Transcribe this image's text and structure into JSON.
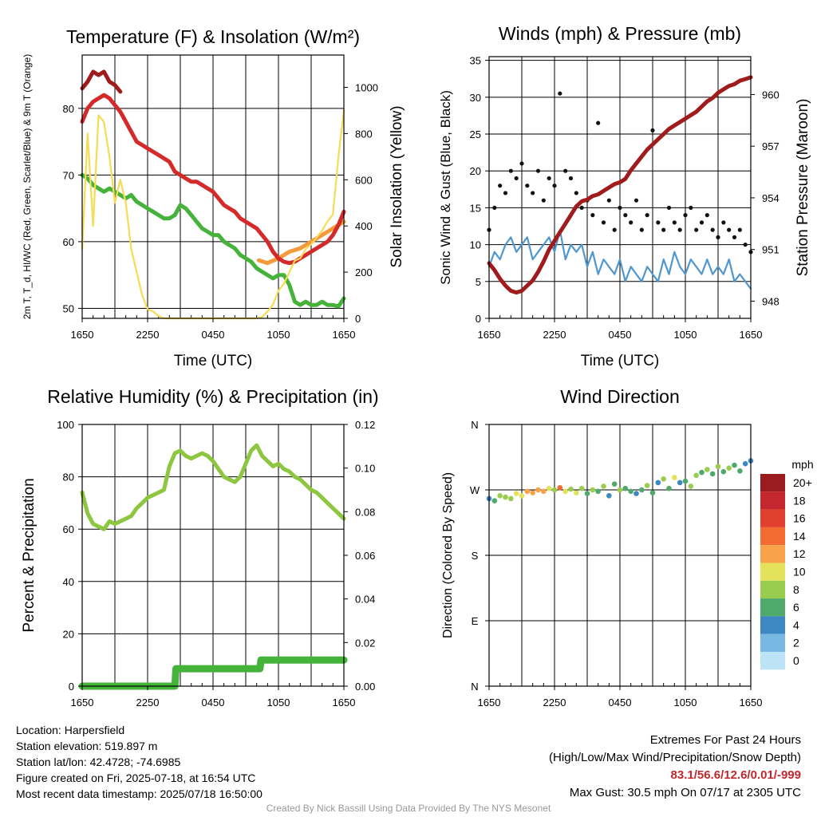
{
  "chart_data": [
    {
      "type": "line",
      "title": "Temperature (F) & Insolation (W/m²)",
      "xlabel": "Time (UTC)",
      "ylabel": "2m T, T_d, HI/WC (Red, Green, Scarlet/Blue) & 9m T (Orange)",
      "y2label": "Solar Insolation (Yellow)",
      "x_ticks": [
        "1650",
        "2250",
        "0450",
        "1050",
        "1650"
      ],
      "ylim": [
        48.5,
        88
      ],
      "y_ticks": [
        50,
        60,
        70,
        80
      ],
      "y2lim": [
        0,
        1140
      ],
      "y2_ticks": [
        0,
        200,
        400,
        600,
        800,
        1000
      ],
      "grid": true,
      "series": [
        {
          "name": "HI/WC",
          "color": "#a01c1c",
          "x": [
            0,
            0.5,
            1,
            1.5,
            2,
            2.5,
            3,
            3.5
          ],
          "values": [
            83,
            84,
            85.5,
            85,
            85.5,
            84,
            83.5,
            82.5
          ]
        },
        {
          "name": "9m T",
          "color": "#f59a3a",
          "x": [
            16.2,
            17,
            18,
            19,
            20,
            21,
            22,
            23,
            24
          ],
          "values": [
            57.2,
            56.8,
            57.5,
            58.5,
            59,
            60,
            61,
            62,
            63
          ]
        },
        {
          "name": "2m T",
          "color": "#d42a2a",
          "x": [
            0,
            0.5,
            1,
            1.5,
            2,
            2.5,
            3,
            3.5,
            4,
            4.5,
            5,
            5.5,
            6,
            6.5,
            7,
            7.5,
            8,
            8.5,
            9,
            9.5,
            10,
            10.5,
            11,
            11.5,
            12,
            12.5,
            13,
            13.5,
            14,
            14.5,
            15,
            15.5,
            16,
            16.5,
            17,
            17.5,
            18,
            18.5,
            19,
            19.5,
            20,
            20.5,
            21,
            21.5,
            22,
            22.5,
            23,
            23.5,
            24
          ],
          "values": [
            78,
            80,
            81,
            81.5,
            82,
            81.5,
            80.5,
            79.5,
            78,
            76.5,
            75,
            74.5,
            74,
            73.5,
            73,
            72.5,
            72,
            70.5,
            70,
            69.5,
            69,
            69,
            68.5,
            68,
            67.5,
            66.5,
            65.5,
            65,
            64.5,
            63.5,
            63,
            62.5,
            62,
            61,
            60,
            58.5,
            57.5,
            57,
            56.8,
            57,
            57.5,
            58,
            58.5,
            59,
            59.5,
            60,
            61,
            62.5,
            64.5
          ]
        },
        {
          "name": "T_d",
          "color": "#45b23a",
          "x": [
            0,
            0.5,
            1,
            1.5,
            2,
            2.5,
            3,
            3.5,
            4,
            4.5,
            5,
            5.5,
            6,
            6.5,
            7,
            7.5,
            8,
            8.5,
            9,
            9.5,
            10,
            10.5,
            11,
            11.5,
            12,
            12.5,
            13,
            13.5,
            14,
            14.5,
            15,
            15.5,
            16,
            16.5,
            17,
            17.5,
            18,
            18.5,
            19,
            19.5,
            20,
            20.5,
            21,
            21.5,
            22,
            22.5,
            23,
            23.5,
            24
          ],
          "values": [
            70,
            69.5,
            68.5,
            68,
            67.5,
            68,
            67.5,
            67,
            66.5,
            67,
            66,
            65.5,
            65,
            64.5,
            64,
            63.5,
            63.5,
            64,
            65.5,
            65,
            64,
            63,
            62,
            61.5,
            61,
            61,
            60,
            59.5,
            59,
            58,
            57.5,
            57,
            56,
            55.5,
            55,
            54.5,
            55,
            55,
            53.5,
            51,
            50.5,
            51,
            50.5,
            50.5,
            51,
            50.5,
            50.5,
            50.3,
            51.5
          ]
        },
        {
          "name": "Solar Insolation",
          "color": "#f6dc55",
          "axis": "right",
          "x": [
            0,
            0.5,
            1,
            1.5,
            2,
            2.5,
            3,
            3.5,
            4,
            4.5,
            5,
            5.5,
            6,
            6.5,
            7,
            7.5,
            8,
            8.5,
            9,
            9.5,
            10,
            11,
            12,
            13,
            14,
            15,
            16,
            16.5,
            17,
            17.5,
            18,
            18.5,
            19,
            19.5,
            20,
            20.5,
            21,
            21.5,
            22,
            22.5,
            23,
            23.5,
            24
          ],
          "values": [
            300,
            800,
            400,
            880,
            850,
            700,
            500,
            600,
            500,
            300,
            200,
            100,
            40,
            30,
            10,
            0,
            0,
            0,
            0,
            0,
            0,
            0,
            0,
            0,
            0,
            0,
            0,
            5,
            30,
            60,
            120,
            150,
            200,
            250,
            260,
            300,
            320,
            350,
            380,
            420,
            450,
            700,
            900
          ]
        }
      ]
    },
    {
      "type": "line",
      "title": "Winds (mph) & Pressure (mb)",
      "xlabel": "Time (UTC)",
      "ylabel": "Sonic Wind & Gust (Blue, Black)",
      "y2label": "Station Pressure (Maroon)",
      "x_ticks": [
        "1650",
        "2250",
        "0450",
        "1050",
        "1650"
      ],
      "ylim": [
        0,
        35.5
      ],
      "y_ticks": [
        0,
        5,
        10,
        15,
        20,
        25,
        30,
        35
      ],
      "y2lim": [
        947,
        962.2
      ],
      "y2_ticks": [
        948,
        951,
        954,
        957,
        960
      ],
      "grid": true,
      "series": [
        {
          "name": "Wind",
          "color": "#4f97cf",
          "x": [
            0,
            0.5,
            1,
            1.5,
            2,
            2.5,
            3,
            3.5,
            4,
            4.5,
            5,
            5.5,
            6,
            6.5,
            7,
            7.5,
            8,
            8.5,
            9,
            9.5,
            10,
            10.5,
            11,
            11.5,
            12,
            12.5,
            13,
            13.5,
            14,
            14.5,
            15,
            15.5,
            16,
            16.5,
            17,
            17.5,
            18,
            18.5,
            19,
            19.5,
            20,
            20.5,
            21,
            21.5,
            22,
            22.5,
            23,
            23.5,
            24
          ],
          "values": [
            7,
            9,
            8,
            10,
            11,
            9,
            10,
            11,
            8,
            9,
            10,
            11,
            9,
            12,
            8,
            10,
            9,
            10,
            7,
            9,
            6,
            8,
            7,
            6,
            8,
            5,
            7,
            6,
            5,
            7,
            6,
            5,
            8,
            6,
            9,
            7,
            6,
            8,
            7,
            6,
            8,
            6,
            7,
            6,
            8,
            5,
            6,
            5,
            4
          ]
        },
        {
          "name": "Gust",
          "color": "#111111",
          "kind": "scatter",
          "x": [
            0,
            0.5,
            1,
            1.5,
            2,
            2.5,
            3,
            3.5,
            4,
            4.5,
            5,
            5.5,
            6,
            6.5,
            7,
            7.5,
            8,
            8.5,
            9,
            9.5,
            10,
            10.5,
            11,
            11.5,
            12,
            12.5,
            13,
            13.5,
            14,
            14.5,
            15,
            15.5,
            16,
            16.5,
            17,
            17.5,
            18,
            18.5,
            19,
            19.5,
            20,
            20.5,
            21,
            21.5,
            22,
            22.5,
            23,
            23.5,
            24
          ],
          "values": [
            12,
            15,
            18,
            17,
            20,
            19,
            21,
            18,
            17,
            20,
            16,
            19,
            18,
            30.5,
            20,
            19,
            17,
            15,
            16,
            14,
            26.5,
            13,
            16,
            12,
            15,
            14,
            13,
            16,
            12,
            14,
            25.5,
            13,
            12,
            15,
            13,
            12,
            14,
            15,
            12,
            13,
            14,
            12,
            11,
            13,
            12,
            11,
            12,
            10,
            9
          ]
        },
        {
          "name": "Pressure",
          "color": "#a01c1c",
          "axis": "right",
          "x": [
            0,
            0.5,
            1,
            1.5,
            2,
            2.5,
            3,
            3.5,
            4,
            4.5,
            5,
            5.5,
            6,
            6.5,
            7,
            7.5,
            8,
            8.5,
            9,
            9.5,
            10,
            10.5,
            11,
            11.5,
            12,
            12.5,
            13,
            13.5,
            14,
            14.5,
            15,
            15.5,
            16,
            16.5,
            17,
            17.5,
            18,
            18.5,
            19,
            19.5,
            20,
            20.5,
            21,
            21.5,
            22,
            22.5,
            23,
            23.5,
            24
          ],
          "values": [
            950.2,
            949.8,
            949.3,
            948.9,
            948.6,
            948.5,
            948.6,
            948.9,
            949.2,
            949.7,
            950.3,
            951,
            951.5,
            952,
            952.5,
            953,
            953.5,
            953.8,
            953.9,
            954.1,
            954.2,
            954.4,
            954.6,
            954.8,
            954.9,
            955.1,
            955.6,
            956,
            956.4,
            956.8,
            957.1,
            957.4,
            957.7,
            958,
            958.2,
            958.4,
            958.6,
            958.8,
            959,
            959.3,
            959.6,
            959.8,
            960.1,
            960.3,
            960.5,
            960.6,
            960.8,
            960.9,
            961.0
          ]
        }
      ]
    },
    {
      "type": "line",
      "title": "Relative Humidity (%) & Precipitation (in)",
      "ylabel": "Percent & Precipitation",
      "x_ticks": [
        "1650",
        "2250",
        "0450",
        "1050",
        "1650"
      ],
      "ylim": [
        0,
        100
      ],
      "y_ticks": [
        0,
        20,
        40,
        60,
        80,
        100
      ],
      "y2lim": [
        0,
        0.12
      ],
      "y2_ticks": [
        "0.00",
        "0.02",
        "0.04",
        "0.06",
        "0.08",
        "0.10",
        "0.12"
      ],
      "grid": true,
      "series": [
        {
          "name": "Relative Humidity",
          "color": "#8dc63f",
          "x": [
            0,
            0.5,
            1,
            1.5,
            2,
            2.5,
            3,
            3.5,
            4,
            4.5,
            5,
            5.5,
            6,
            6.5,
            7,
            7.5,
            8,
            8.5,
            9,
            9.5,
            10,
            10.5,
            11,
            11.5,
            12,
            12.5,
            13,
            13.5,
            14,
            14.5,
            15,
            15.5,
            16,
            16.5,
            17,
            17.5,
            18,
            18.5,
            19,
            19.5,
            20,
            20.5,
            21,
            21.5,
            22,
            22.5,
            23,
            23.5,
            24
          ],
          "values": [
            74,
            66,
            62,
            61,
            60,
            63,
            62,
            63,
            64,
            65,
            68,
            70,
            72,
            73,
            74,
            75,
            84,
            89,
            90,
            88,
            87,
            88,
            89,
            88,
            86,
            83,
            80,
            79,
            78,
            80,
            85,
            90,
            92,
            88,
            86,
            84,
            85,
            83,
            82,
            80,
            79,
            77,
            75,
            74,
            72,
            70,
            68,
            66,
            64
          ]
        },
        {
          "name": "Precipitation",
          "color": "#45b23a",
          "axis": "right",
          "x": [
            0,
            8.5,
            8.6,
            16.3,
            16.4,
            24
          ],
          "values": [
            0,
            0,
            0.008,
            0.008,
            0.012,
            0.012
          ]
        }
      ]
    },
    {
      "type": "scatter",
      "title": "Wind Direction",
      "ylabel": "Direction (Colored By Speed)",
      "x_ticks": [
        "1650",
        "2250",
        "0450",
        "1050",
        "1650"
      ],
      "y_tick_labels": [
        "N",
        "E",
        "S",
        "W",
        "N"
      ],
      "ylim": [
        0,
        360
      ],
      "grid": true,
      "colorbar_title": "mph",
      "colorbar_labels": [
        "20+",
        "18",
        "16",
        "14",
        "12",
        "10",
        "8",
        "6",
        "4",
        "2",
        "0"
      ],
      "colorbar_colors": [
        "#9b1c1f",
        "#c4272d",
        "#e2402f",
        "#f26b31",
        "#f9a24a",
        "#e4e15b",
        "#98cd4f",
        "#4ea96b",
        "#3d87c2",
        "#79b8e3",
        "#bde4f6"
      ],
      "x": [
        0,
        0.5,
        1,
        1.5,
        2,
        2.5,
        3,
        3.5,
        4,
        4.5,
        5,
        5.5,
        6,
        6.5,
        7,
        7.5,
        8,
        8.5,
        9,
        9.5,
        10,
        10.5,
        11,
        11.5,
        12,
        12.5,
        13,
        13.5,
        14,
        14.5,
        15,
        15.5,
        16,
        16.5,
        17,
        17.5,
        18,
        18.5,
        19,
        19.5,
        20,
        20.5,
        21,
        21.5,
        22,
        22.5,
        23,
        23.5,
        24
      ],
      "values": [
        258,
        255,
        262,
        260,
        258,
        265,
        262,
        268,
        266,
        270,
        268,
        272,
        270,
        273,
        268,
        271,
        266,
        272,
        265,
        270,
        268,
        275,
        262,
        278,
        270,
        272,
        268,
        265,
        270,
        276,
        266,
        280,
        285,
        272,
        287,
        280,
        282,
        275,
        290,
        294,
        298,
        292,
        302,
        295,
        300,
        304,
        296,
        306,
        310
      ],
      "speeds": [
        4,
        6,
        7,
        8,
        8,
        9,
        10,
        11,
        12,
        12,
        11,
        9,
        8,
        13,
        10,
        8,
        9,
        7,
        6,
        8,
        5,
        7,
        4,
        6,
        8,
        5,
        6,
        4,
        5,
        7,
        6,
        4,
        8,
        5,
        9,
        4,
        6,
        8,
        7,
        5,
        8,
        6,
        7,
        5,
        8,
        5,
        6,
        3,
        4
      ]
    }
  ],
  "info": {
    "location": "Location: Harpersfield",
    "elevation": "Station elevation: 519.897 m",
    "latlon": "Station lat/lon: 42.4728; -74.6985",
    "created": "Figure created on Fri, 2025-07-18, at 16:54 UTC",
    "recent": "Most recent data timestamp: 2025/07/18 16:50:00"
  },
  "extremes": {
    "title": "Extremes For Past 24 Hours",
    "subtitle": "(High/Low/Max Wind/Precipitation/Snow Depth)",
    "values": "83.1/56.6/12.6/0.01/-999",
    "max_gust": "Max Gust: 30.5 mph On 07/17 at 2305 UTC"
  },
  "credit": "Created By Nick Bassill Using Data Provided By The NYS Mesonet"
}
